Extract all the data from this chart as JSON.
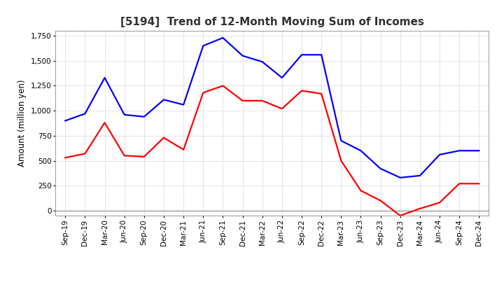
{
  "title": "[5194]  Trend of 12-Month Moving Sum of Incomes",
  "ylabel": "Amount (million yen)",
  "xlabels": [
    "Sep-19",
    "Dec-19",
    "Mar-20",
    "Jun-20",
    "Sep-20",
    "Dec-20",
    "Mar-21",
    "Jun-21",
    "Sep-21",
    "Dec-21",
    "Mar-22",
    "Jun-22",
    "Sep-22",
    "Dec-22",
    "Mar-23",
    "Jun-23",
    "Sep-23",
    "Dec-23",
    "Mar-24",
    "Jun-24",
    "Sep-24",
    "Dec-24"
  ],
  "ordinary_income": [
    900,
    970,
    1330,
    960,
    940,
    1110,
    1060,
    1650,
    1730,
    1550,
    1490,
    1330,
    1560,
    1560,
    700,
    600,
    420,
    330,
    350,
    560,
    600,
    600
  ],
  "net_income": [
    530,
    570,
    880,
    550,
    540,
    730,
    610,
    1180,
    1250,
    1100,
    1100,
    1020,
    1200,
    1170,
    500,
    200,
    100,
    -50,
    20,
    80,
    270,
    270
  ],
  "ordinary_color": "#0000FF",
  "net_color": "#FF0000",
  "ylim": [
    -50,
    1800
  ],
  "yticks": [
    0,
    250,
    500,
    750,
    1000,
    1250,
    1500,
    1750
  ],
  "grid_color": "#aaaaaa",
  "background_color": "#ffffff",
  "title_fontsize": 11,
  "ylabel_fontsize": 8.5,
  "tick_fontsize": 7.5,
  "legend_fontsize": 9,
  "linewidth": 1.6
}
